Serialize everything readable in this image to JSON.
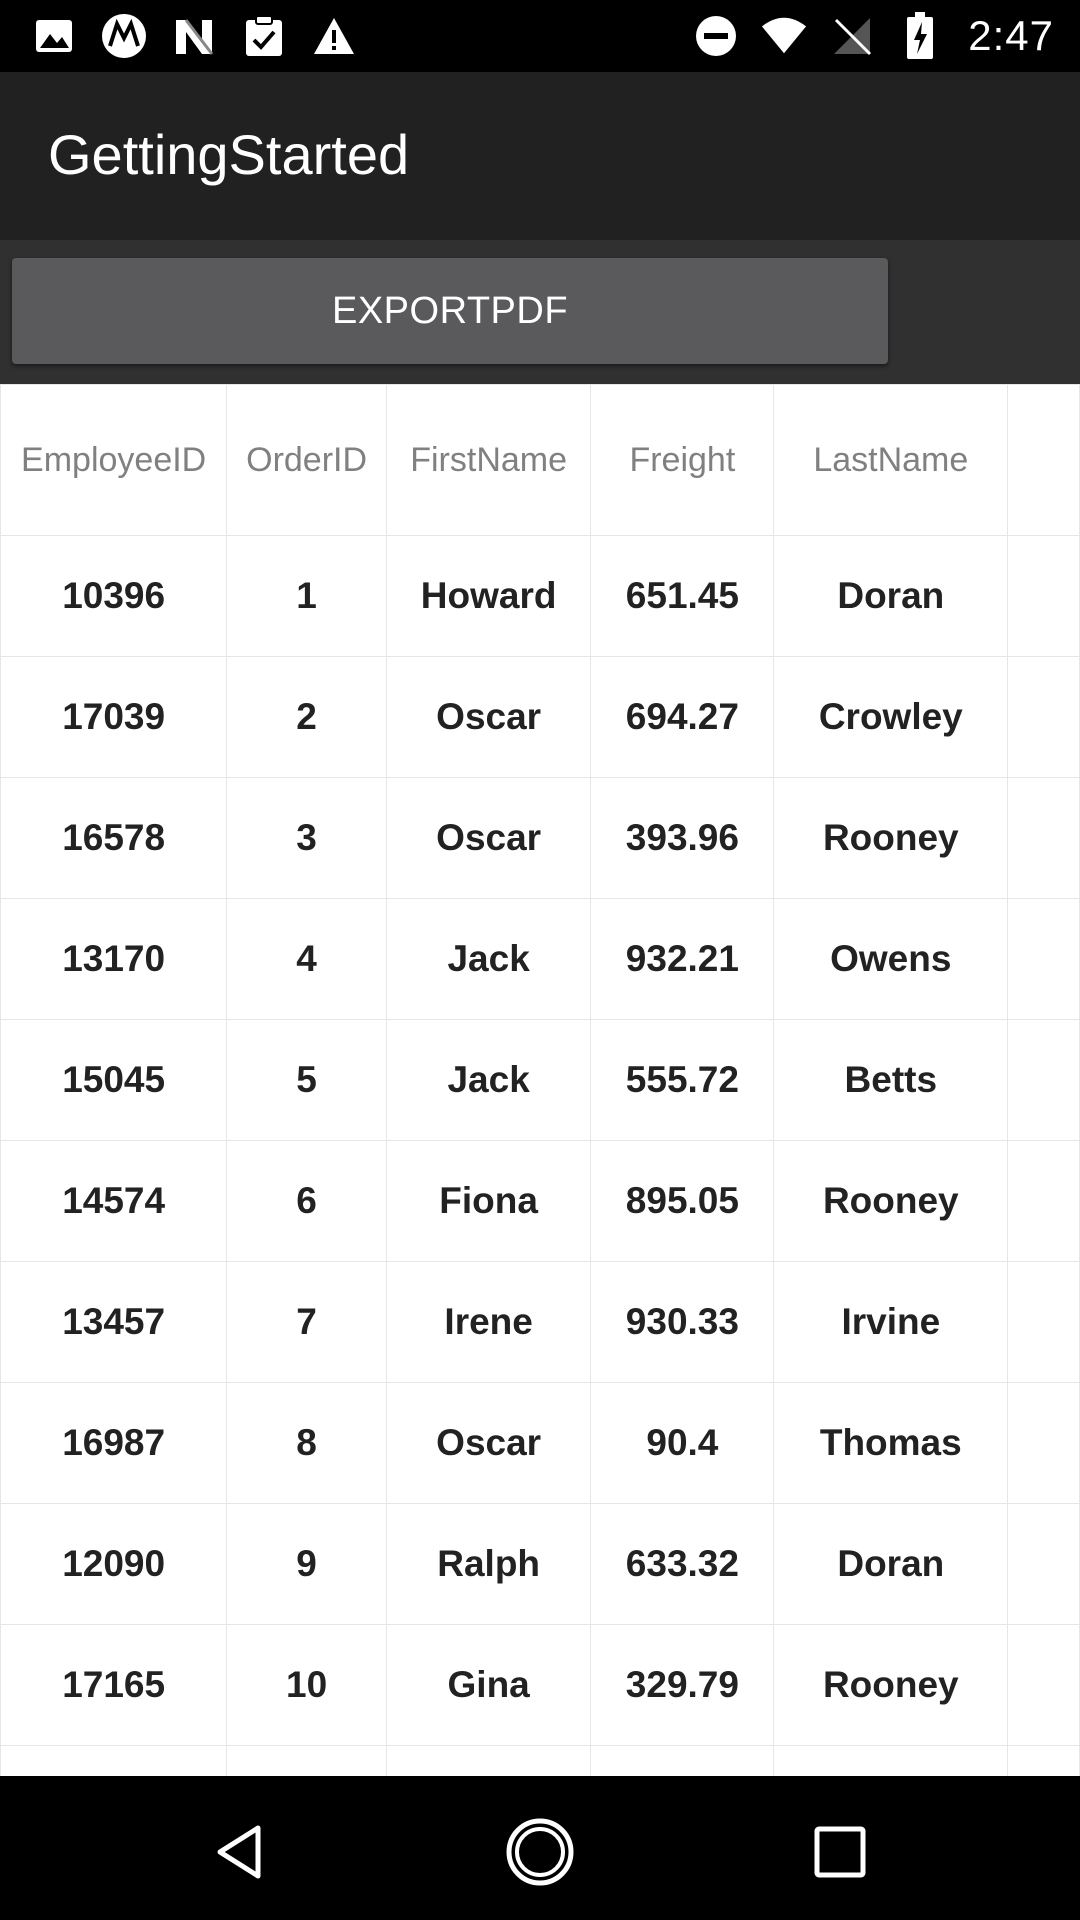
{
  "status_bar": {
    "time": "2:47",
    "left_icons": [
      "image-icon",
      "motorola-icon",
      "n-logo-icon",
      "clipboard-check-icon",
      "warning-icon"
    ],
    "right_icons": [
      "do-not-disturb-icon",
      "wifi-icon",
      "no-signal-icon",
      "battery-charging-icon"
    ]
  },
  "app_bar": {
    "title": "GettingStarted"
  },
  "toolbar": {
    "export_label": "EXPORTPDF"
  },
  "grid": {
    "columns": [
      "EmployeeID",
      "OrderID",
      "FirstName",
      "Freight",
      "LastName"
    ],
    "rows": [
      [
        "10396",
        "1",
        "Howard",
        "651.45",
        "Doran"
      ],
      [
        "17039",
        "2",
        "Oscar",
        "694.27",
        "Crowley"
      ],
      [
        "16578",
        "3",
        "Oscar",
        "393.96",
        "Rooney"
      ],
      [
        "13170",
        "4",
        "Jack",
        "932.21",
        "Owens"
      ],
      [
        "15045",
        "5",
        "Jack",
        "555.72",
        "Betts"
      ],
      [
        "14574",
        "6",
        "Fiona",
        "895.05",
        "Rooney"
      ],
      [
        "13457",
        "7",
        "Irene",
        "930.33",
        "Irvine"
      ],
      [
        "16987",
        "8",
        "Oscar",
        "90.4",
        "Thomas"
      ],
      [
        "12090",
        "9",
        "Ralph",
        "633.32",
        "Doran"
      ],
      [
        "17165",
        "10",
        "Gina",
        "329.79",
        "Rooney"
      ]
    ]
  },
  "nav_bar": {
    "buttons": [
      "back-icon",
      "home-icon",
      "recents-icon"
    ]
  },
  "colors": {
    "status_bar": "#000000",
    "app_bar": "#212121",
    "toolbar": "#303030",
    "button": "#5a5a5c",
    "grid_border": "#e6e6e6",
    "header_text": "#808080",
    "cell_text": "#222222"
  }
}
